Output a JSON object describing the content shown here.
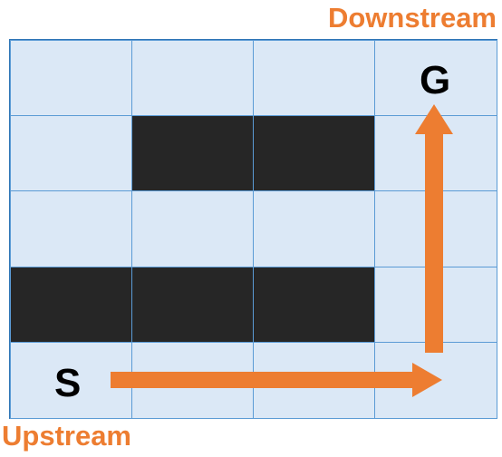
{
  "labels": {
    "downstream": "Downstream",
    "upstream": "Upstream",
    "goal": "G",
    "start": "S"
  },
  "grid": {
    "rows": 5,
    "cols": 4,
    "blocked_cells": [
      [
        1,
        1
      ],
      [
        1,
        2
      ],
      [
        3,
        0
      ],
      [
        3,
        1
      ],
      [
        3,
        2
      ]
    ]
  },
  "path": {
    "waypoints": [
      [
        4,
        0
      ],
      [
        4,
        3
      ],
      [
        0,
        3
      ]
    ]
  },
  "colors": {
    "accent": "#ed7d31",
    "cell_fill": "#dbe8f6",
    "cell_border": "#5b9bd5",
    "blocked_fill": "#262626",
    "text": "#000000"
  }
}
